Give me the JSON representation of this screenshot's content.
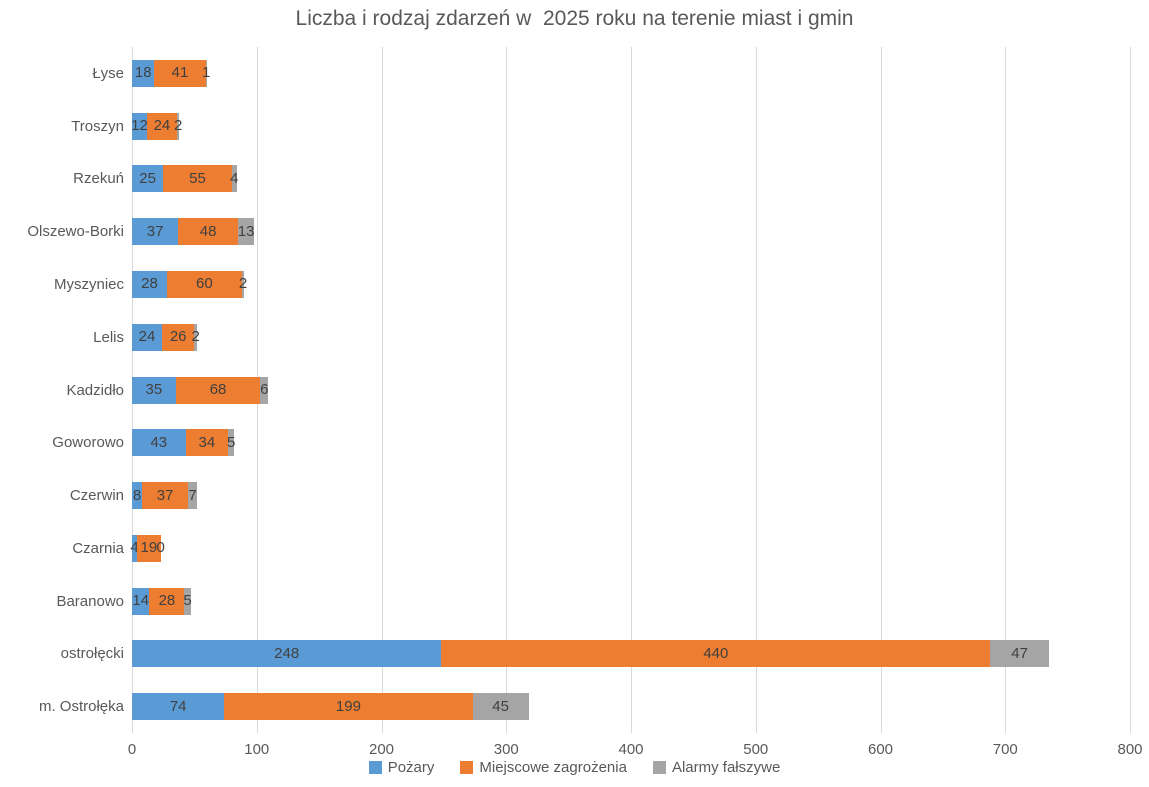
{
  "chart_data": {
    "type": "bar",
    "orientation": "horizontal-stacked",
    "title": "Liczba i rodzaj zdarzeń w  2025 roku na terenie miast i gmin",
    "categories": [
      "Łyse",
      "Troszyn",
      "Rzekuń",
      "Olszewo-Borki",
      "Myszyniec",
      "Lelis",
      "Kadzidło",
      "Goworowo",
      "Czerwin",
      "Czarnia",
      "Baranowo",
      "ostrołęcki",
      "m. Ostrołęka"
    ],
    "series": [
      {
        "name": "Pożary",
        "color": "#5B9BD5",
        "values": [
          18,
          12,
          25,
          37,
          28,
          24,
          35,
          43,
          8,
          4,
          14,
          248,
          74
        ]
      },
      {
        "name": "Miejscowe zagrożenia",
        "color": "#ED7D31",
        "values": [
          41,
          24,
          55,
          48,
          60,
          26,
          68,
          34,
          37,
          19,
          28,
          440,
          199
        ]
      },
      {
        "name": "Alarmy fałszywe",
        "color": "#A5A5A5",
        "values": [
          1,
          2,
          4,
          13,
          2,
          2,
          6,
          5,
          7,
          0,
          5,
          47,
          45
        ]
      }
    ],
    "xlim": [
      0,
      800
    ],
    "x_ticks": [
      0,
      100,
      200,
      300,
      400,
      500,
      600,
      700,
      800
    ],
    "grid": true,
    "data_labels": true,
    "legend_position": "bottom"
  },
  "colors": {
    "title_text": "#595959",
    "axis_text": "#595959",
    "data_label_text": "#404040",
    "gridline": "#D9D9D9",
    "background": "#FFFFFF",
    "series_blue": "#5B9BD5",
    "series_orange": "#ED7D31",
    "series_gray": "#A5A5A5"
  }
}
